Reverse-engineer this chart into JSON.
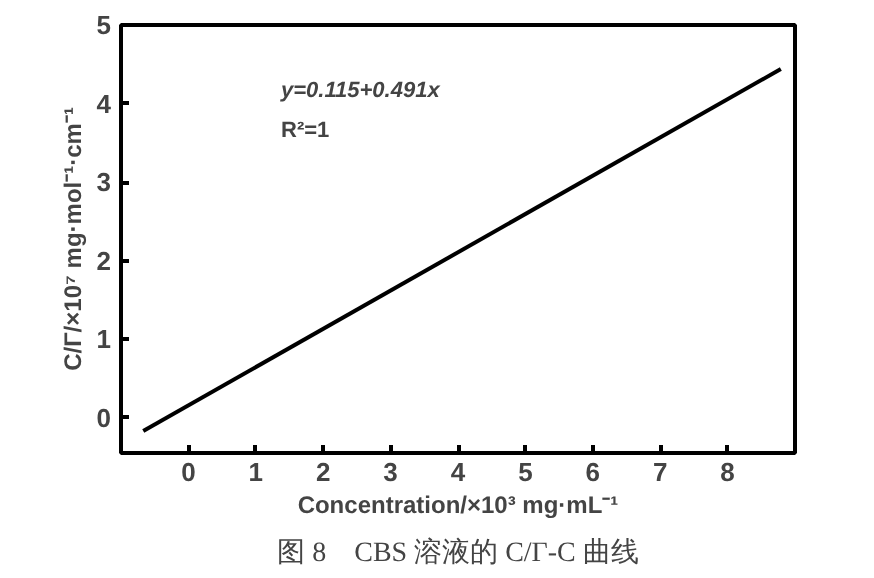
{
  "chart_data": {
    "type": "line",
    "xlabel": "Concentration/×10³ mg·mL⁻¹",
    "ylabel": "C/Γ/×10⁷ mg·mol⁻¹·cm⁻¹",
    "x": [
      -0.67,
      8.79
    ],
    "series": [
      {
        "color": "#000000",
        "values": [
          -0.17,
          4.44
        ]
      }
    ],
    "xlim": [
      -1,
      9
    ],
    "ylim": [
      -0.45,
      5
    ],
    "xticks": [
      0,
      1,
      2,
      3,
      4,
      5,
      6,
      7,
      8
    ],
    "yticks": [
      0,
      1,
      2,
      3,
      4,
      5
    ],
    "grid": false,
    "marker": "none",
    "line_style": "solid",
    "annotations": [
      "y=0.115+0.491x",
      "R²=1",
      "图 8　CBS 溶液的 C/Γ-C 曲线"
    ]
  }
}
